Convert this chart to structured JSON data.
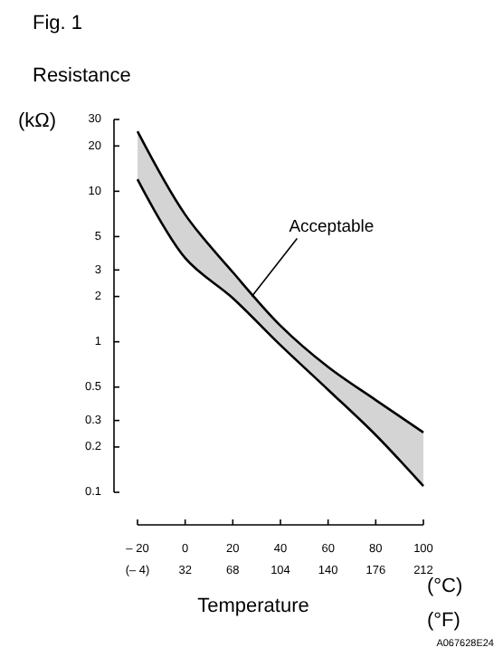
{
  "chart_data": {
    "type": "line",
    "title": "Fig. 1",
    "ylabel": "Resistance",
    "xlabel": "Temperature",
    "annotations": [
      "(kΩ)",
      "(°C)",
      "(°F)",
      "A067628E24",
      {
        "text": "Acceptable",
        "x": 28,
        "y": 2
      }
    ],
    "x": [
      -20,
      0,
      20,
      40,
      60,
      80,
      100
    ],
    "series": [
      {
        "color": "#000000",
        "values": [
          25,
          7,
          2.9,
          1.28,
          0.68,
          0.41,
          0.25
        ],
        "lower": [
          12,
          3.6,
          1.95,
          0.95,
          0.48,
          0.24,
          0.11
        ],
        "upper": [
          25,
          7,
          2.9,
          1.28,
          0.68,
          0.41,
          0.25
        ]
      },
      {
        "color": "#000000",
        "values": [
          12,
          3.6,
          1.95,
          0.95,
          0.48,
          0.24,
          0.11
        ]
      }
    ],
    "log": "y",
    "xlim": [
      -20,
      100
    ],
    "ylim": [
      0.1,
      30
    ],
    "xticks": [
      {
        "value": -20,
        "label": "– 20"
      },
      0,
      20,
      40,
      60,
      80,
      100
    ],
    "x2lim": [
      -4,
      212
    ],
    "x2ticks": [
      {
        "value": -4,
        "label": "(– 4)"
      },
      32,
      68,
      104,
      140,
      176,
      212
    ],
    "yticks": [
      30,
      20,
      10,
      5,
      3,
      2,
      1,
      0.5,
      0.3,
      0.2,
      0.1
    ],
    "marker": "none",
    "line_style": "solid",
    "grid": false
  }
}
